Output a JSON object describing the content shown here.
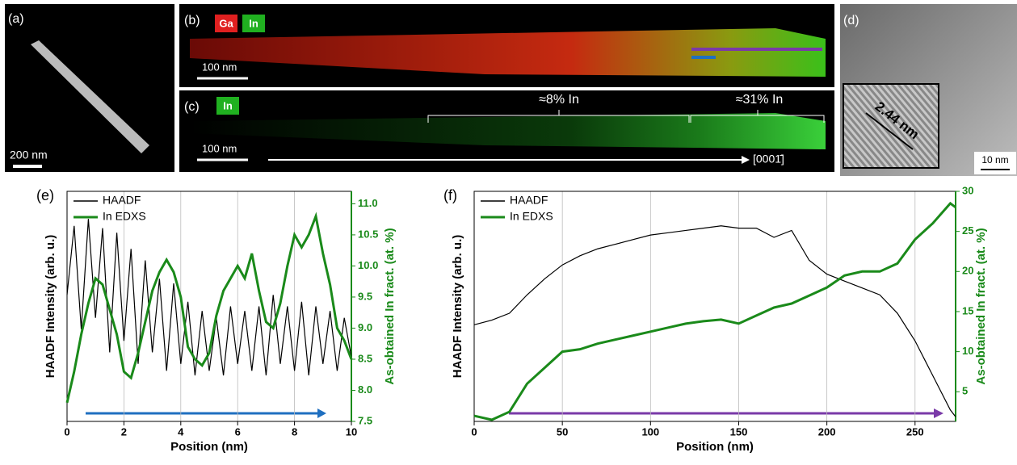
{
  "images": {
    "a": {
      "label": "(a)",
      "scale": "200 nm"
    },
    "b": {
      "label": "(b)",
      "tags": [
        "Ga",
        "In"
      ],
      "scale": "100 nm"
    },
    "c": {
      "label": "(c)",
      "tag": "In",
      "scale": "100 nm",
      "regions": [
        "≈8% In",
        "≈31% In"
      ],
      "direction": "[0001̄]"
    },
    "d": {
      "label": "(d)",
      "inset": "2.44 nm",
      "scale": "10 nm"
    }
  },
  "chart_data": [
    {
      "type": "line",
      "label": "(e)",
      "xlabel": "Position (nm)",
      "ylabel": "HAADF Intensity (arb. u.)",
      "y2label": "As-obtained In fract. (at. %)",
      "xlim": [
        0,
        10
      ],
      "xticks": [
        0,
        2,
        4,
        6,
        8,
        10
      ],
      "ylim": [
        0,
        1
      ],
      "y2lim": [
        7.5,
        11.2
      ],
      "y2ticks": [
        7.5,
        {
          "value": 8,
          "label": "8.0"
        },
        8.5,
        {
          "value": 9,
          "label": "9.0"
        },
        9.5,
        {
          "value": 10,
          "label": "10.0"
        },
        10.5,
        {
          "value": 11,
          "label": "11.0"
        }
      ],
      "grid": true,
      "legend": "upper-left",
      "series": [
        {
          "name": "HAADF",
          "color": "#000000",
          "axis": "y",
          "x": [
            0,
            0.25,
            0.5,
            0.75,
            1,
            1.25,
            1.5,
            1.75,
            2,
            2.25,
            2.5,
            2.75,
            3,
            3.25,
            3.5,
            3.75,
            4,
            4.25,
            4.5,
            4.75,
            5,
            5.25,
            5.5,
            5.75,
            6,
            6.25,
            6.5,
            6.75,
            7,
            7.25,
            7.5,
            7.75,
            8,
            8.25,
            8.5,
            8.75,
            9,
            9.25,
            9.5,
            9.75,
            10
          ],
          "values": [
            0.55,
            0.85,
            0.4,
            0.88,
            0.45,
            0.84,
            0.3,
            0.82,
            0.35,
            0.75,
            0.25,
            0.7,
            0.3,
            0.62,
            0.22,
            0.6,
            0.25,
            0.52,
            0.2,
            0.48,
            0.22,
            0.45,
            0.2,
            0.5,
            0.25,
            0.48,
            0.22,
            0.5,
            0.2,
            0.55,
            0.25,
            0.5,
            0.22,
            0.52,
            0.2,
            0.5,
            0.25,
            0.48,
            0.22,
            0.45,
            0.28
          ]
        },
        {
          "name": "In EDXS",
          "color": "#1a8a1a",
          "axis": "y2",
          "x": [
            0,
            0.25,
            0.5,
            0.75,
            1,
            1.25,
            1.5,
            1.75,
            2,
            2.25,
            2.5,
            2.75,
            3,
            3.25,
            3.5,
            3.75,
            4,
            4.25,
            4.5,
            4.75,
            5,
            5.25,
            5.5,
            5.75,
            6,
            6.25,
            6.5,
            6.75,
            7,
            7.25,
            7.5,
            7.75,
            8,
            8.25,
            8.5,
            8.75,
            9,
            9.25,
            9.5,
            9.75,
            10
          ],
          "values": [
            7.8,
            8.3,
            8.9,
            9.4,
            9.8,
            9.7,
            9.3,
            8.9,
            8.3,
            8.2,
            8.6,
            9.1,
            9.6,
            9.9,
            10.1,
            9.9,
            9.5,
            8.7,
            8.5,
            8.4,
            8.6,
            9.2,
            9.6,
            9.8,
            10,
            9.8,
            10.2,
            9.6,
            9.1,
            9,
            9.4,
            10,
            10.5,
            10.3,
            10.5,
            10.8,
            10.2,
            9.7,
            9,
            8.8,
            8.5
          ]
        }
      ]
    },
    {
      "type": "line",
      "label": "(f)",
      "xlabel": "Position (nm)",
      "ylabel": "HAADF Intensity (arb. u.)",
      "y2label": "As-obtained In fract. (at. %)",
      "xlim": [
        0,
        273
      ],
      "xticks": [
        0,
        50,
        100,
        150,
        200,
        250
      ],
      "ylim": [
        0,
        1
      ],
      "y2lim": [
        1.3,
        30
      ],
      "y2ticks": [
        5,
        10,
        15,
        20,
        25,
        30
      ],
      "grid": true,
      "legend": "upper-left",
      "series": [
        {
          "name": "HAADF",
          "color": "#000000",
          "axis": "y",
          "x": [
            0,
            10,
            20,
            30,
            40,
            50,
            60,
            70,
            80,
            90,
            100,
            110,
            120,
            130,
            140,
            150,
            160,
            170,
            180,
            190,
            200,
            210,
            220,
            230,
            240,
            250,
            260,
            270,
            273
          ],
          "values": [
            0.42,
            0.44,
            0.47,
            0.55,
            0.62,
            0.68,
            0.72,
            0.75,
            0.77,
            0.79,
            0.81,
            0.82,
            0.83,
            0.84,
            0.85,
            0.84,
            0.84,
            0.8,
            0.83,
            0.7,
            0.64,
            0.61,
            0.58,
            0.55,
            0.47,
            0.35,
            0.2,
            0.05,
            0.02
          ]
        },
        {
          "name": "In EDXS",
          "color": "#1a8a1a",
          "axis": "y2",
          "x": [
            0,
            10,
            20,
            30,
            40,
            50,
            60,
            70,
            80,
            90,
            100,
            110,
            120,
            130,
            140,
            150,
            160,
            170,
            180,
            190,
            200,
            210,
            220,
            230,
            240,
            250,
            260,
            270,
            273
          ],
          "values": [
            2,
            1.5,
            2.5,
            6,
            8,
            10,
            10.3,
            11,
            11.5,
            12,
            12.5,
            13,
            13.5,
            13.8,
            14,
            13.5,
            14.5,
            15.5,
            16,
            17,
            18,
            19.5,
            20,
            20,
            21,
            24,
            26,
            28.5,
            28
          ]
        }
      ]
    }
  ]
}
